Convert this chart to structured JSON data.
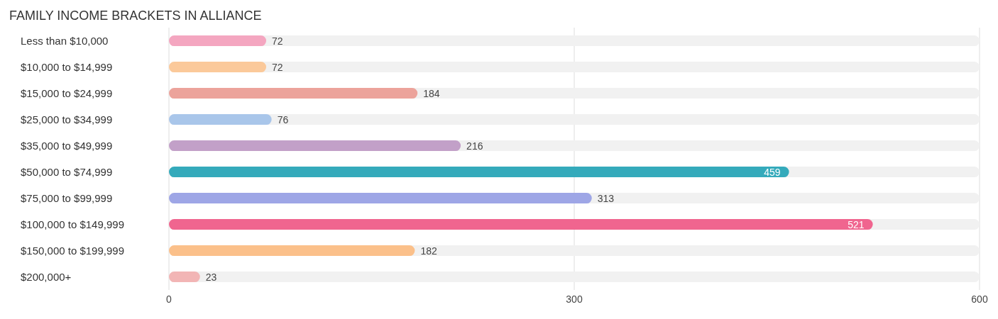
{
  "chart_data": {
    "type": "bar",
    "title": "FAMILY INCOME BRACKETS IN ALLIANCE",
    "orientation": "horizontal",
    "categories": [
      "Less than $10,000",
      "$10,000 to $14,999",
      "$15,000 to $24,999",
      "$25,000 to $34,999",
      "$35,000 to $49,999",
      "$50,000 to $74,999",
      "$75,000 to $99,999",
      "$100,000 to $149,999",
      "$150,000 to $199,999",
      "$200,000+"
    ],
    "values": [
      72,
      72,
      184,
      76,
      216,
      459,
      313,
      521,
      182,
      23
    ],
    "colors": [
      "#f4a6c0",
      "#fbc99a",
      "#eca39b",
      "#a9c6ea",
      "#c2a0c8",
      "#34aabb",
      "#9ea6e6",
      "#f0658f",
      "#fbc08a",
      "#f2b5b5"
    ],
    "xlim": [
      0,
      600
    ],
    "xticks": [
      0,
      300,
      600
    ],
    "grid": "x",
    "legend": false,
    "data_labels": true
  }
}
